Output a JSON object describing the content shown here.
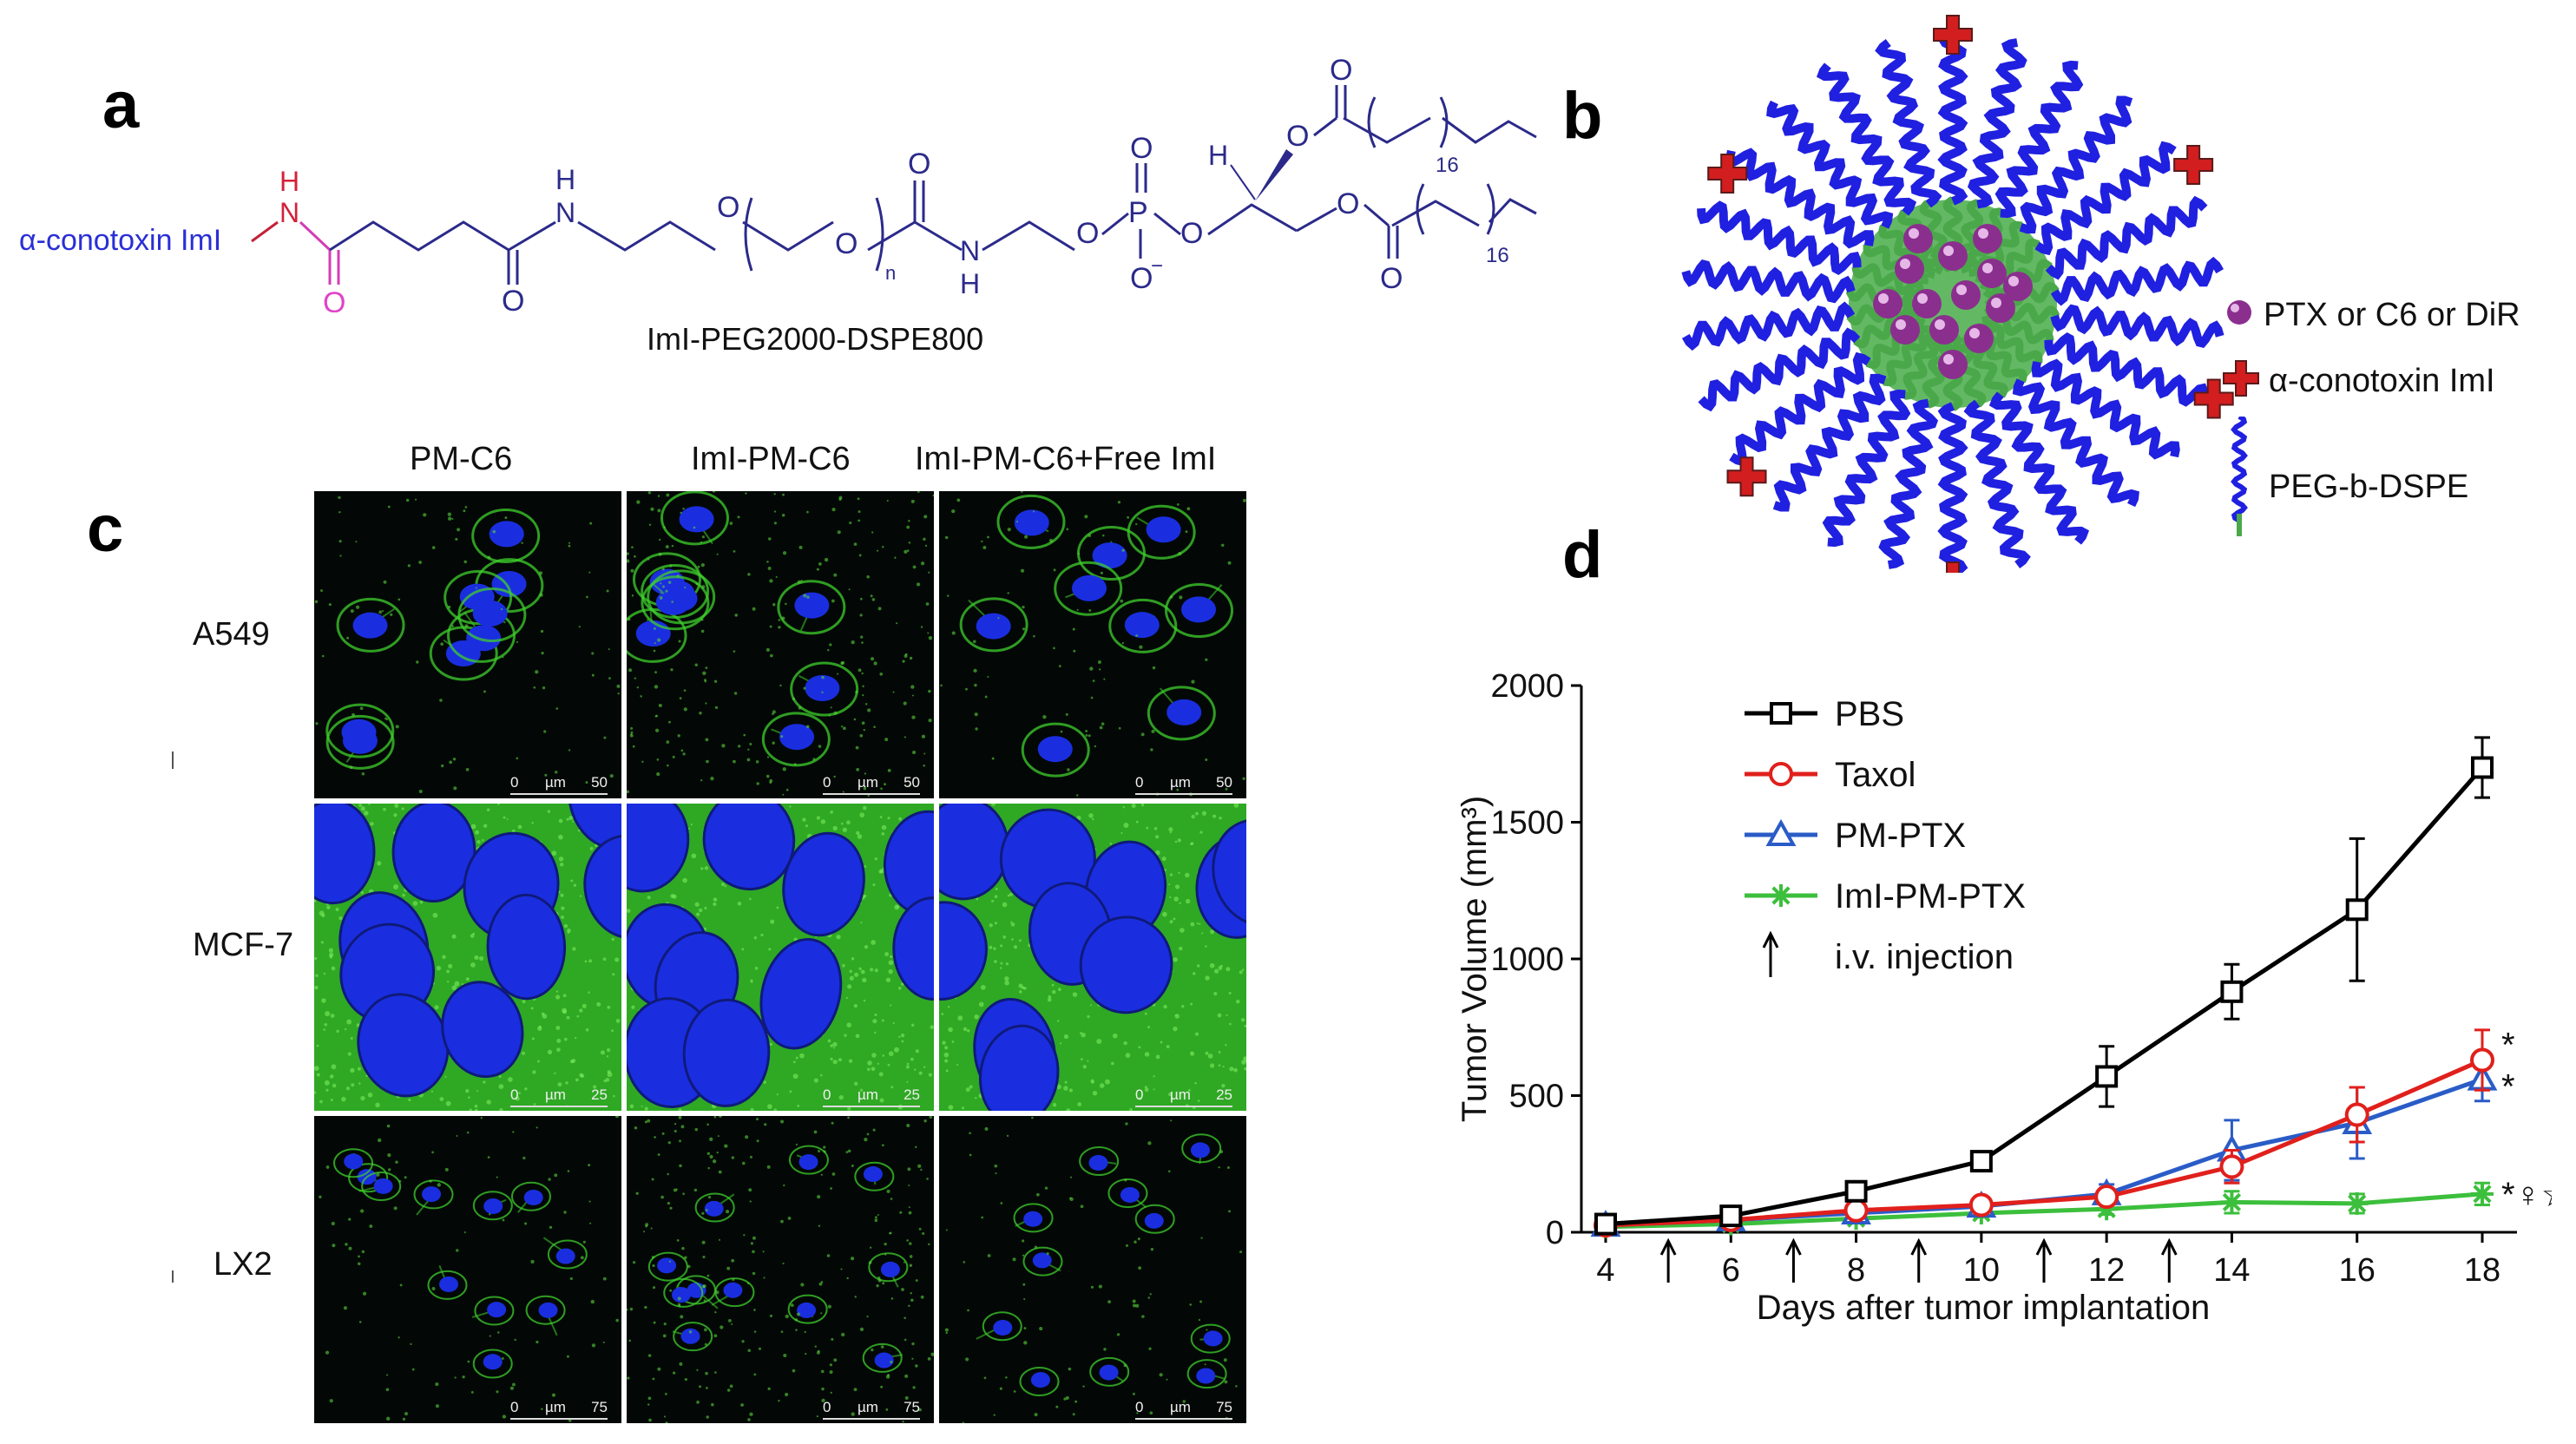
{
  "panels": {
    "a": {
      "letter": "a",
      "conjugate_label": "α-conotoxin ImI",
      "compound_name": "ImI-PEG2000-DSPE800",
      "atoms": {
        "H": "H",
        "N": "N",
        "O": "O",
        "P": "P",
        "O_minus": "O",
        "n": "n",
        "sixteen": "16"
      }
    },
    "b": {
      "letter": "b",
      "legend": [
        {
          "label": "PTX or C6 or DiR",
          "icon": "purple-sphere-icon"
        },
        {
          "label": "α-conotoxin ImI",
          "icon": "red-cross-icon"
        },
        {
          "label": "PEG-b-DSPE",
          "icon": "blue-green-chain-icon"
        }
      ]
    },
    "c": {
      "letter": "c",
      "columns": [
        "PM-C6",
        "ImI-PM-C6",
        "ImI-PM-C6+Free ImI"
      ],
      "rows": [
        "A549",
        "MCF-7",
        "LX2"
      ],
      "scalebars": [
        {
          "zero": "0",
          "unit": "µm",
          "max": "50"
        },
        {
          "zero": "0",
          "unit": "µm",
          "max": "25"
        },
        {
          "zero": "0",
          "unit": "µm",
          "max": "75"
        }
      ],
      "colors": {
        "nucleus": "#1a2ee0",
        "membrane": "#3fcf2c",
        "background": "#030806"
      }
    },
    "d": {
      "letter": "d"
    }
  },
  "chart_data": {
    "type": "line",
    "title": "",
    "xlabel": "Days after tumor implantation",
    "ylabel": "Tumor Volume (mm³)",
    "x": [
      4,
      6,
      8,
      10,
      12,
      14,
      16,
      18
    ],
    "xticks": [
      "4",
      "6",
      "8",
      "10",
      "12",
      "14",
      "16",
      "18"
    ],
    "yticks": [
      "0",
      "500",
      "1000",
      "1500",
      "2000"
    ],
    "xlim": [
      4,
      18
    ],
    "ylim": [
      0,
      2000
    ],
    "grid": false,
    "legend_position": "top-left",
    "series": [
      {
        "name": "PBS",
        "color": "#000000",
        "marker": "square",
        "values": [
          30,
          60,
          150,
          260,
          570,
          880,
          1180,
          1700
        ],
        "errors": [
          10,
          15,
          30,
          35,
          110,
          100,
          260,
          110
        ],
        "significance": ""
      },
      {
        "name": "Taxol",
        "color": "#e0201c",
        "marker": "circle",
        "values": [
          25,
          45,
          80,
          100,
          130,
          240,
          430,
          630
        ],
        "errors": [
          8,
          10,
          15,
          20,
          30,
          60,
          100,
          110
        ],
        "significance": "*"
      },
      {
        "name": "PM-PTX",
        "color": "#2a5cc7",
        "marker": "triangle",
        "values": [
          25,
          45,
          70,
          95,
          140,
          300,
          400,
          560
        ],
        "errors": [
          8,
          10,
          15,
          20,
          35,
          110,
          130,
          80
        ],
        "significance": "*"
      },
      {
        "name": "ImI-PM-PTX",
        "color": "#3cbf3c",
        "marker": "asterisk",
        "values": [
          20,
          30,
          50,
          70,
          85,
          110,
          105,
          140
        ],
        "errors": [
          6,
          8,
          12,
          15,
          20,
          40,
          35,
          40
        ],
        "significance": "*♀☆"
      }
    ],
    "injection_days": [
      5,
      7,
      9,
      11,
      13
    ],
    "injection_label": "i.v. injection"
  }
}
